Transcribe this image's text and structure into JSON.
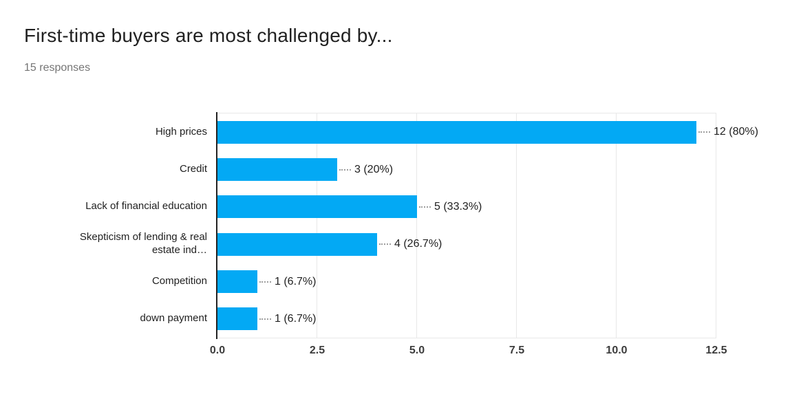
{
  "header": {
    "title": "First-time buyers are most challenged by...",
    "subtitle": "15 responses"
  },
  "chart_data": {
    "type": "bar",
    "orientation": "horizontal",
    "title": "First-time buyers are most challenged by...",
    "subtitle": "15 responses",
    "categories": [
      "High prices",
      "Credit",
      "Lack of financial education",
      "Skepticism of lending & real estate ind…",
      "Competition",
      "down payment"
    ],
    "category_display": [
      "High prices",
      "Credit",
      "Lack of financial education",
      "Skepticism of lending & real\nestate ind…",
      "Competition",
      "down payment"
    ],
    "values": [
      12,
      3,
      5,
      4,
      1,
      1
    ],
    "value_labels": [
      "12 (80%)",
      "3 (20%)",
      "5 (33.3%)",
      "4 (26.7%)",
      "1 (6.7%)",
      "1 (6.7%)"
    ],
    "x_ticks": [
      "0.0",
      "2.5",
      "5.0",
      "7.5",
      "10.0",
      "12.5"
    ],
    "x_tick_values": [
      0,
      2.5,
      5,
      7.5,
      10,
      12.5
    ],
    "xlim": [
      0,
      12.5
    ],
    "grid": true,
    "legend": "none",
    "colors": {
      "bar": "#03a9f4",
      "gridline": "#e8e8e8",
      "axis_line": "#212121",
      "title_text": "#212121",
      "subtitle_text": "#757575",
      "label_text": "#212121",
      "tick_text": "#3c3c3c",
      "callout_line": "#9e9e9e"
    }
  }
}
